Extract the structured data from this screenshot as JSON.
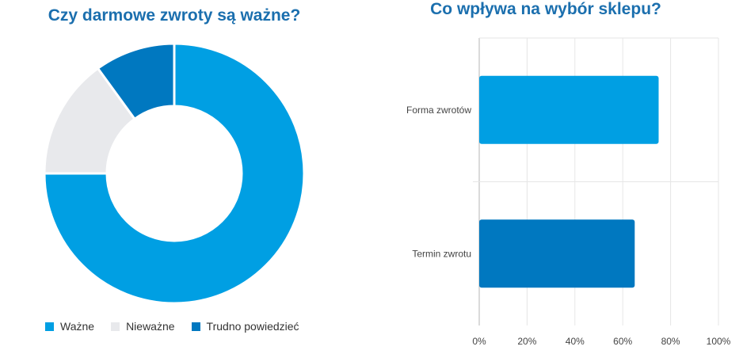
{
  "chart_data": [
    {
      "type": "pie",
      "variant": "donut",
      "title": "Czy darmowe zwroty są ważne?",
      "categories": [
        "Ważne",
        "Nieważne",
        "Trudno powiedzieć"
      ],
      "values": [
        75,
        15,
        10
      ],
      "colors": [
        "#009fe3",
        "#e8e9ec",
        "#0078c0"
      ],
      "legend": "bottom"
    },
    {
      "type": "bar",
      "orientation": "horizontal",
      "title": "Co wpływa na wybór sklepu?",
      "categories": [
        "Forma zwrotów",
        "Termin zwrotu"
      ],
      "values": [
        75,
        65
      ],
      "colors": [
        "#009fe3",
        "#0078c0"
      ],
      "xlim": [
        0,
        100
      ],
      "xticks": [
        "0%",
        "20%",
        "40%",
        "60%",
        "80%",
        "100%"
      ],
      "grid": true,
      "legend": "none"
    }
  ]
}
